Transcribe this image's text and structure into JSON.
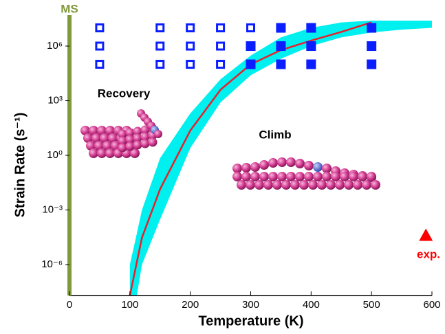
{
  "chart_data": {
    "type": "scatter",
    "xlabel": "Temperature (K)",
    "ylabel": "Strain Rate (s⁻¹)",
    "xlim": [
      0,
      600
    ],
    "xticks": [
      0,
      100,
      200,
      300,
      400,
      500,
      600
    ],
    "yscale": "log",
    "ylim": [
      2e-08,
      25000000.0
    ],
    "yticks": [
      {
        "value": 1e-06,
        "label": "10⁻⁶"
      },
      {
        "value": 0.001,
        "label": "10⁻³"
      },
      {
        "value": 1,
        "label": "10⁰"
      },
      {
        "value": 1000,
        "label": "10³"
      },
      {
        "value": 1000000,
        "label": "10⁶"
      }
    ],
    "series": [
      {
        "marker": "open-square",
        "color": "#0a1eff",
        "x": [
          50,
          50,
          50,
          150,
          150,
          150,
          200,
          200,
          200,
          250,
          250,
          250,
          300
        ],
        "values": [
          10000000.0,
          1000000.0,
          100000.0,
          10000000.0,
          1000000.0,
          100000.0,
          10000000.0,
          1000000.0,
          100000.0,
          10000000.0,
          1000000.0,
          100000.0,
          10000000.0
        ]
      },
      {
        "marker": "filled-square",
        "color": "#0a1eff",
        "x": [
          300,
          300,
          350,
          350,
          350,
          400,
          400,
          400,
          500,
          500,
          500
        ],
        "values": [
          1000000.0,
          100000.0,
          10000000.0,
          1000000.0,
          100000.0,
          10000000.0,
          1000000.0,
          100000.0,
          10000000.0,
          1000000.0,
          100000.0
        ]
      },
      {
        "marker": "triangle",
        "color": "#ff0000",
        "x": [
          590
        ],
        "values": [
          4e-05
        ]
      }
    ],
    "band": {
      "color": "#00f0f0",
      "x": [
        100,
        110,
        120,
        150,
        200,
        250,
        300,
        350,
        400,
        450,
        500,
        550,
        600
      ],
      "upper": [
        1e-06,
        3e-05,
        0.001,
        0.7,
        200,
        15000,
        300000,
        3000000,
        10000000,
        20000000,
        25000000,
        25000000,
        25000000
      ],
      "lower": [
        1e-09,
        1e-08,
        1e-06,
        0.0003,
        2.5,
        800,
        25000,
        200000,
        1000000,
        3000000,
        5600000,
        8000000,
        10000000
      ]
    },
    "fit": {
      "color": "#e8202a",
      "x": [
        100,
        120,
        150,
        200,
        250,
        300,
        350,
        400,
        450,
        500
      ],
      "values": [
        2e-08,
        3e-05,
        0.014,
        23,
        4000,
        100000,
        600000,
        2000000,
        6000000,
        20000000
      ]
    },
    "vline": {
      "label": "MS",
      "x": 0,
      "color": "#7f9a3a"
    },
    "annotations": [
      {
        "text": "Recovery"
      },
      {
        "text": "Climb"
      },
      {
        "text": "exp."
      }
    ]
  }
}
